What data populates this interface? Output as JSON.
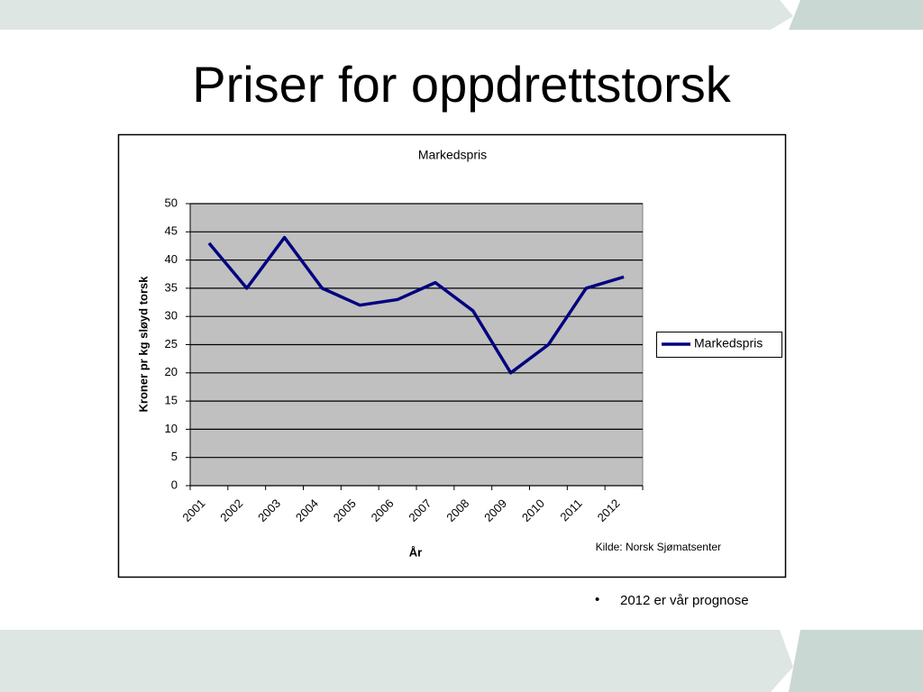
{
  "header": {
    "title": "Priser for oppdrettstorsk"
  },
  "chart_data": {
    "type": "line",
    "title": "Markedspris",
    "y_label": "Kroner pr kg sløyd torsk",
    "x_label": "År",
    "source": "Kilde: Norsk Sjømatsenter",
    "categories": [
      "2001",
      "2002",
      "2003",
      "2004",
      "2005",
      "2006",
      "2007",
      "2008",
      "2009",
      "2010",
      "2011",
      "2012"
    ],
    "series": [
      {
        "name": "Markedspris",
        "color": "#000080",
        "values": [
          43,
          35,
          44,
          35,
          32,
          33,
          36,
          31,
          20,
          25,
          35,
          37
        ]
      }
    ],
    "ylim": [
      0,
      50
    ],
    "yticks": [
      0,
      5,
      10,
      15,
      20,
      25,
      30,
      35,
      40,
      45,
      50
    ],
    "grid": true,
    "legend": "right",
    "plot_background": "#c0c0c0"
  },
  "note": "2012 er vår prognose"
}
